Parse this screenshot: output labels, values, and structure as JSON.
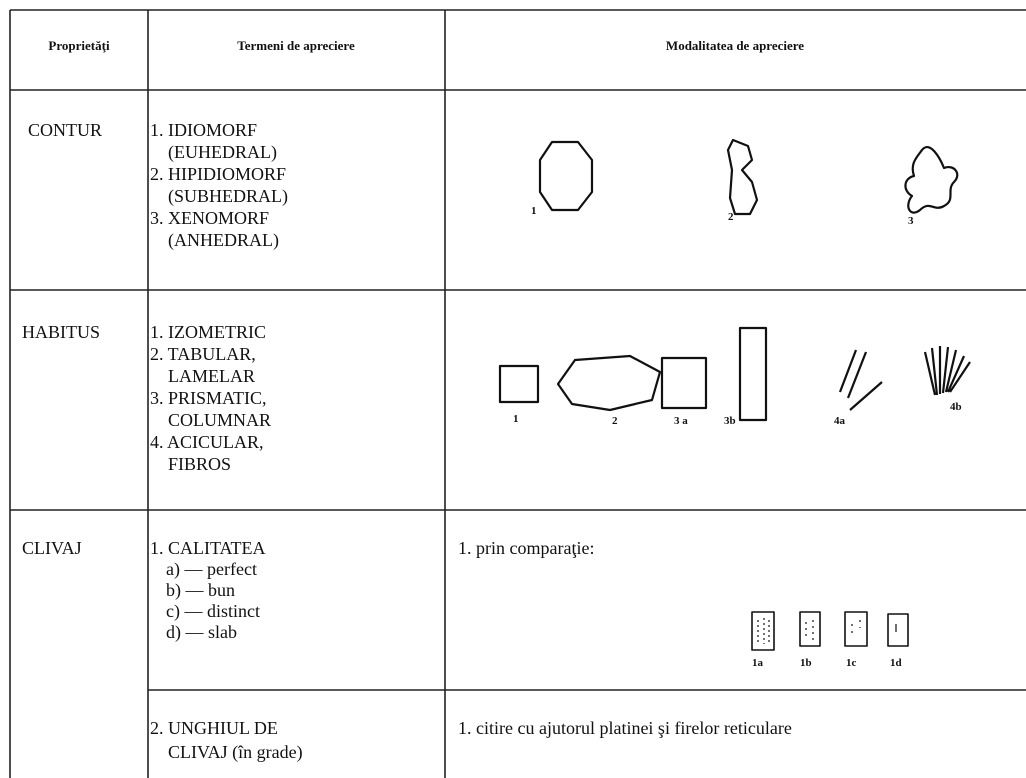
{
  "header": {
    "col1": "Proprietăţi",
    "col2": "Termeni de apreciere",
    "col3": "Modalitatea de apreciere"
  },
  "rows": [
    {
      "property": "CONTUR",
      "terms": [
        "1. IDIOMORF",
        "(EUHEDRAL)",
        "2. HIPIDIOMORF",
        "(SUBHEDRAL)",
        "3. XENOMORF",
        "(ANHEDRAL)"
      ],
      "figure_labels": [
        "1",
        "2",
        "3"
      ]
    },
    {
      "property": "HABITUS",
      "terms": [
        "1. IZOMETRIC",
        "2. TABULAR,",
        "LAMELAR",
        "3. PRISMATIC,",
        "COLUMNAR",
        "4. ACICULAR,",
        "FIBROS"
      ],
      "figure_labels": [
        "1",
        "2",
        "3 a",
        "3b",
        "4a",
        "4b"
      ]
    },
    {
      "property": "CLIVAJ",
      "terms": [
        "1. CALITATEA",
        "a) — perfect",
        "b) — bun",
        "c) — distinct",
        "d) — slab"
      ],
      "method": "1. prin comparaţie:",
      "figure_labels": [
        "1a",
        "1b",
        "1c",
        "1d"
      ]
    },
    {
      "terms": [
        "2. UNGHIUL DE",
        "CLIVAJ (în grade)"
      ],
      "method": "1. citire cu ajutorul platinei şi firelor reticulare"
    }
  ]
}
